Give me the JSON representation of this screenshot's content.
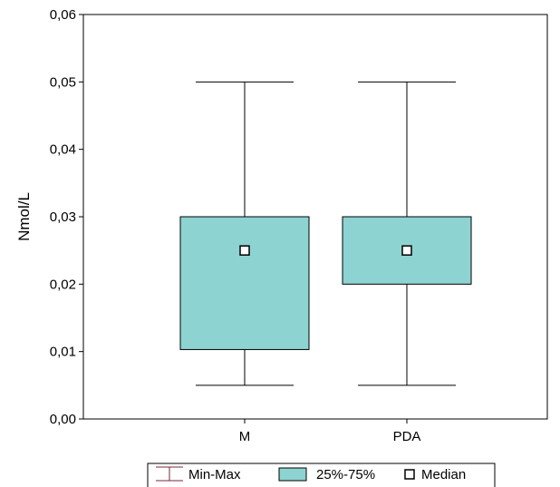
{
  "chart_data": {
    "type": "box",
    "title": "",
    "xlabel": "",
    "ylabel": "Nmol/L",
    "ylim": [
      0,
      0.06
    ],
    "yticks": [
      "0,00",
      "0,01",
      "0,02",
      "0,03",
      "0,04",
      "0,05",
      "0,06"
    ],
    "categories": [
      "M",
      "PDA"
    ],
    "boxes": [
      {
        "category": "M",
        "min": 0.005,
        "q1": 0.0103,
        "median": 0.025,
        "q3": 0.03,
        "max": 0.05
      },
      {
        "category": "PDA",
        "min": 0.005,
        "q1": 0.02,
        "median": 0.025,
        "q3": 0.03,
        "max": 0.05
      }
    ],
    "legend": {
      "placement": "bottom",
      "items": [
        "Min-Max",
        "25%-75%",
        "Median"
      ]
    },
    "colors": {
      "box_fill": "#8dd3d1",
      "minmax_icon": "#7a2a3a",
      "line": "#000000"
    },
    "grid": false
  }
}
